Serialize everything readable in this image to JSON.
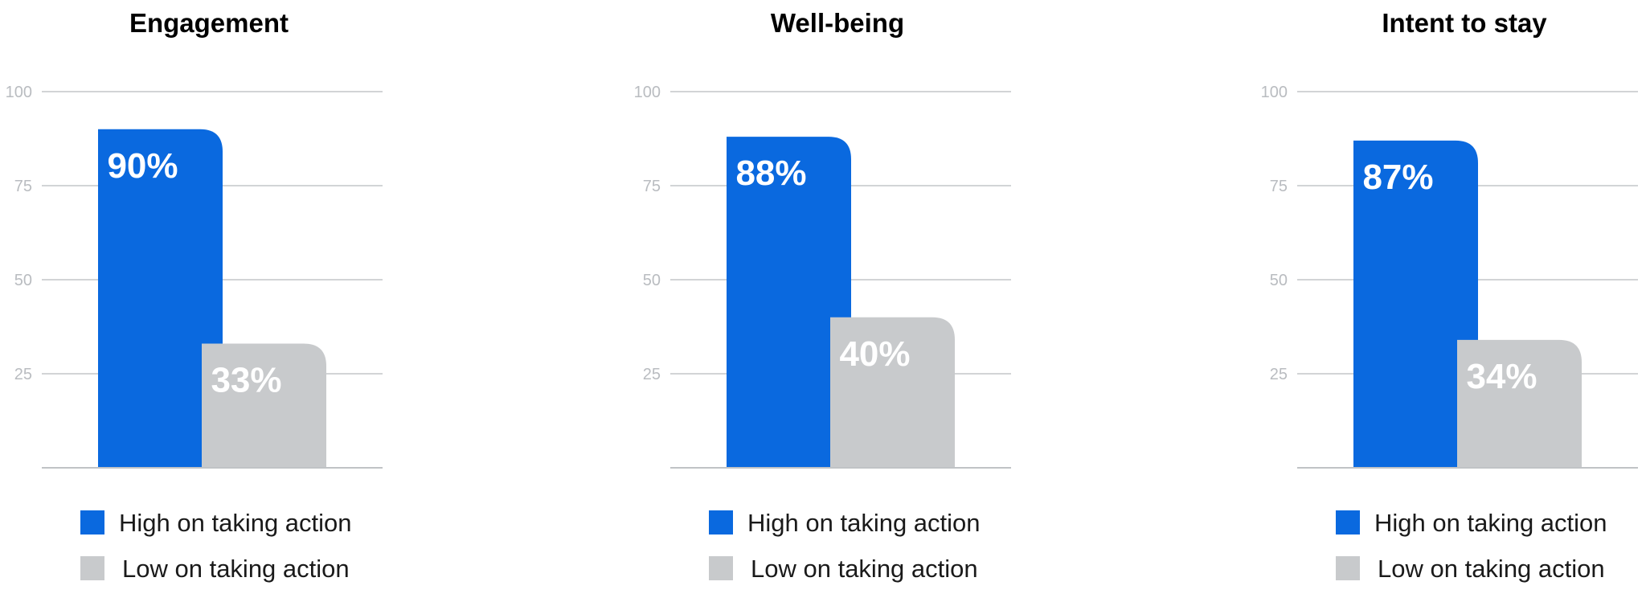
{
  "colors": {
    "high": "#0a69df",
    "low": "#c8cacc",
    "grid": "#d2d4d6",
    "axis": "#c0c3c6"
  },
  "chart_data": [
    {
      "type": "bar",
      "title": "Engagement",
      "categories": [
        "High on taking action",
        "Low on taking action"
      ],
      "values": [
        90,
        33
      ],
      "data_labels": [
        "90%",
        "33%"
      ],
      "yticks": [
        25,
        50,
        75,
        100
      ],
      "ylim": [
        0,
        100
      ],
      "grid": true,
      "legend": [
        "High on taking action",
        "Low on taking action"
      ],
      "legend_position": "bottom"
    },
    {
      "type": "bar",
      "title": "Well-being",
      "categories": [
        "High on taking action",
        "Low on taking action"
      ],
      "values": [
        88,
        40
      ],
      "data_labels": [
        "88%",
        "40%"
      ],
      "yticks": [
        25,
        50,
        75,
        100
      ],
      "ylim": [
        0,
        100
      ],
      "grid": true,
      "legend": [
        "High on taking action",
        "Low on taking action"
      ],
      "legend_position": "bottom"
    },
    {
      "type": "bar",
      "title": "Intent to stay",
      "categories": [
        "High on taking action",
        "Low on taking action"
      ],
      "values": [
        87,
        34
      ],
      "data_labels": [
        "87%",
        "34%"
      ],
      "yticks": [
        25,
        50,
        75,
        100
      ],
      "ylim": [
        0,
        100
      ],
      "grid": true,
      "legend": [
        "High on taking action",
        "Low on taking action"
      ],
      "legend_position": "bottom"
    }
  ]
}
